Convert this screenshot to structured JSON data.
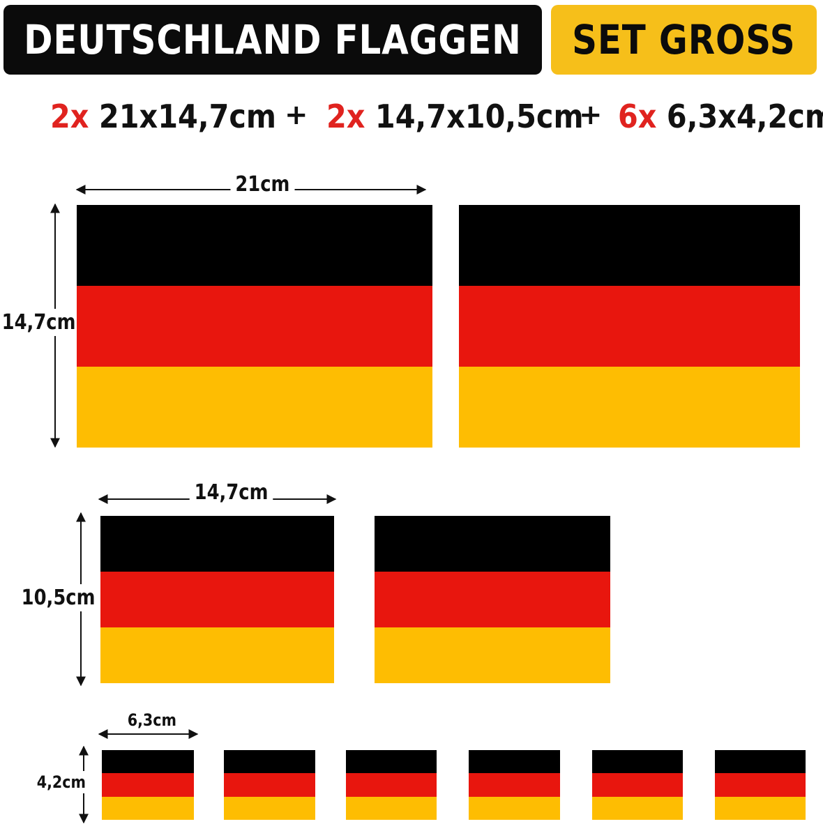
{
  "header": {
    "title": "DEUTSCHLAND FLAGGEN",
    "set_label": "SET GROSS"
  },
  "specs": [
    {
      "qty": "2x",
      "size": "21x14,7cm"
    },
    {
      "qty": "2x",
      "size": "14,7x10,5cm"
    },
    {
      "qty": "6x",
      "size": "6,3x4,2cm"
    }
  ],
  "plus_sign": "+",
  "dimensions": {
    "large": {
      "width": "21cm",
      "height": "14,7cm"
    },
    "medium": {
      "width": "14,7cm",
      "height": "10,5cm"
    },
    "small": {
      "width": "6,3cm",
      "height": "4,2cm"
    }
  },
  "flag_colors": {
    "black": "#000000",
    "red": "#e8160e",
    "gold": "#febd02"
  },
  "accent_colors": {
    "quantity": "#e0231f",
    "set_badge": "#f6bf1a",
    "title_badge": "#0b0b0b"
  }
}
